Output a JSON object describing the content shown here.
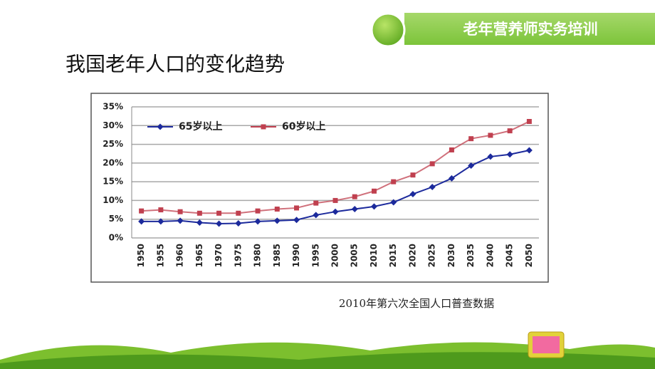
{
  "header": {
    "title": "老年营养师实务培训"
  },
  "slide_title": "我国老年人口的变化趋势",
  "caption": "2010年第六次全国人口普查数据",
  "chart_data": {
    "type": "line",
    "categories": [
      "1950",
      "1955",
      "1960",
      "1965",
      "1970",
      "1975",
      "1980",
      "1985",
      "1990",
      "1995",
      "2000",
      "2005",
      "2010",
      "2015",
      "2020",
      "2025",
      "2030",
      "2035",
      "2040",
      "2045",
      "2050"
    ],
    "series": [
      {
        "name": "65岁以上",
        "color": "#1c2a9c",
        "marker": "diamond",
        "values": [
          4.4,
          4.4,
          4.6,
          4.1,
          3.8,
          3.9,
          4.4,
          4.6,
          4.8,
          6.1,
          7.0,
          7.7,
          8.4,
          9.5,
          11.7,
          13.6,
          15.9,
          19.3,
          21.7,
          22.3,
          23.4
        ]
      },
      {
        "name": "60岁以上",
        "color": "#c0404f",
        "marker": "square",
        "values": [
          7.2,
          7.5,
          7.0,
          6.6,
          6.6,
          6.6,
          7.2,
          7.7,
          8.0,
          9.3,
          10.0,
          11.0,
          12.5,
          15.0,
          16.8,
          19.8,
          23.5,
          26.5,
          27.4,
          28.6,
          31.1
        ]
      }
    ],
    "ylim": [
      0,
      35
    ],
    "yticks": [
      {
        "value": 0,
        "label": "0%"
      },
      {
        "value": 5,
        "label": "5%"
      },
      {
        "value": 10,
        "label": "10%"
      },
      {
        "value": 15,
        "label": "15%"
      },
      {
        "value": 20,
        "label": "20%"
      },
      {
        "value": 25,
        "label": "25%"
      },
      {
        "value": 30,
        "label": "30%"
      },
      {
        "value": 35,
        "label": "35%"
      }
    ],
    "grid": true,
    "legend": "upper left"
  }
}
